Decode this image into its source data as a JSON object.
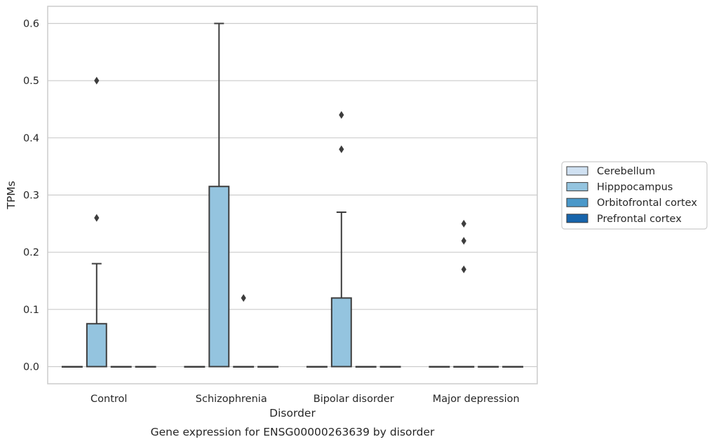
{
  "chart_data": {
    "type": "box",
    "caption": "Gene expression for ENSG00000263639 by disorder",
    "xlabel": "Disorder",
    "ylabel": "TPMs",
    "ylim": [
      -0.03,
      0.63
    ],
    "yticks": [
      0.0,
      0.1,
      0.2,
      0.3,
      0.4,
      0.5,
      0.6
    ],
    "grid": "horizontal",
    "legend_position": "right",
    "categories": [
      "Control",
      "Schizophrenia",
      "Bipolar disorder",
      "Major depression"
    ],
    "series": [
      {
        "name": "Cerebellum",
        "color": "#d0e1f2",
        "boxes": [
          {
            "q1": 0,
            "median": 0,
            "q3": 0,
            "whisker_low": 0,
            "whisker_high": 0,
            "outliers": []
          },
          {
            "q1": 0,
            "median": 0,
            "q3": 0,
            "whisker_low": 0,
            "whisker_high": 0,
            "outliers": []
          },
          {
            "q1": 0,
            "median": 0,
            "q3": 0,
            "whisker_low": 0,
            "whisker_high": 0,
            "outliers": []
          },
          {
            "q1": 0,
            "median": 0,
            "q3": 0,
            "whisker_low": 0,
            "whisker_high": 0,
            "outliers": []
          }
        ]
      },
      {
        "name": "Hipppocampus",
        "color": "#94c4df",
        "boxes": [
          {
            "q1": 0,
            "median": 0,
            "q3": 0.075,
            "whisker_low": 0,
            "whisker_high": 0.18,
            "outliers": [
              0.26,
              0.5
            ]
          },
          {
            "q1": 0,
            "median": 0,
            "q3": 0.315,
            "whisker_low": 0,
            "whisker_high": 0.6,
            "outliers": []
          },
          {
            "q1": 0,
            "median": 0,
            "q3": 0.12,
            "whisker_low": 0,
            "whisker_high": 0.27,
            "outliers": [
              0.38,
              0.44
            ]
          },
          {
            "q1": 0,
            "median": 0,
            "q3": 0,
            "whisker_low": 0,
            "whisker_high": 0,
            "outliers": [
              0.17,
              0.22,
              0.25
            ]
          }
        ]
      },
      {
        "name": "Orbitofrontal cortex",
        "color": "#4a98c9",
        "boxes": [
          {
            "q1": 0,
            "median": 0,
            "q3": 0,
            "whisker_low": 0,
            "whisker_high": 0,
            "outliers": []
          },
          {
            "q1": 0,
            "median": 0,
            "q3": 0,
            "whisker_low": 0,
            "whisker_high": 0,
            "outliers": [
              0.12
            ]
          },
          {
            "q1": 0,
            "median": 0,
            "q3": 0,
            "whisker_low": 0,
            "whisker_high": 0,
            "outliers": []
          },
          {
            "q1": 0,
            "median": 0,
            "q3": 0,
            "whisker_low": 0,
            "whisker_high": 0,
            "outliers": []
          }
        ]
      },
      {
        "name": "Prefrontal cortex",
        "color": "#1764ab",
        "boxes": [
          {
            "q1": 0,
            "median": 0,
            "q3": 0,
            "whisker_low": 0,
            "whisker_high": 0,
            "outliers": []
          },
          {
            "q1": 0,
            "median": 0,
            "q3": 0,
            "whisker_low": 0,
            "whisker_high": 0,
            "outliers": []
          },
          {
            "q1": 0,
            "median": 0,
            "q3": 0,
            "whisker_low": 0,
            "whisker_high": 0,
            "outliers": []
          },
          {
            "q1": 0,
            "median": 0,
            "q3": 0,
            "whisker_low": 0,
            "whisker_high": 0,
            "outliers": []
          }
        ]
      }
    ]
  }
}
